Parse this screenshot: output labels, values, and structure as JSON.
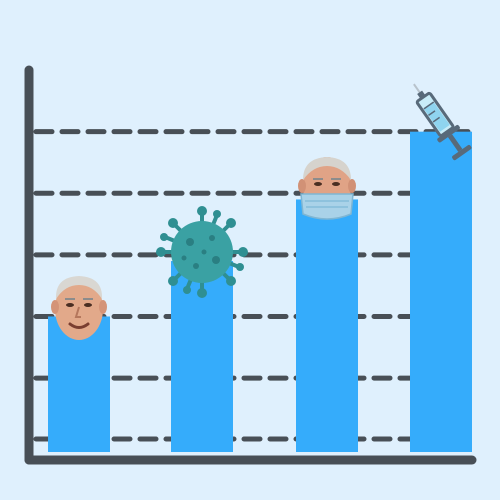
{
  "chart_data": {
    "type": "bar",
    "categories": [
      "",
      "",
      "",
      ""
    ],
    "values": [
      2.2,
      3.1,
      4.1,
      5.2
    ],
    "ylim": [
      0,
      6.0
    ],
    "grid": true,
    "bar_color": "#35acfb",
    "axis_color": "#484f56",
    "grid_color": "#484f56",
    "background": "#dff0fd",
    "bar_decorations": [
      "smiling-face-icon",
      "virus-icon",
      "masked-face-icon",
      "syringe-icon"
    ]
  }
}
